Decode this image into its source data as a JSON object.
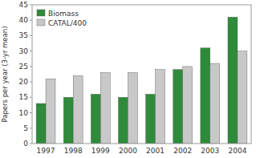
{
  "chart_data": {
    "type": "bar",
    "categories": [
      "1997",
      "1998",
      "1999",
      "2000",
      "2001",
      "2002",
      "2003",
      "2004"
    ],
    "series": [
      {
        "name": "Biomass",
        "color": "#2e8b3a",
        "values": [
          13,
          15,
          16,
          15,
          16,
          24,
          31,
          41
        ]
      },
      {
        "name": "CATAL/400",
        "color": "#c8c8c8",
        "values": [
          21,
          22,
          23,
          23,
          24,
          25,
          26,
          30
        ]
      }
    ],
    "ylabel": "Papers per year (3-yr mean)",
    "ylim": [
      0,
      45
    ],
    "yticks": [
      0,
      5,
      10,
      15,
      20,
      25,
      30,
      35,
      40,
      45
    ],
    "legend": "upper left",
    "grid": false
  }
}
